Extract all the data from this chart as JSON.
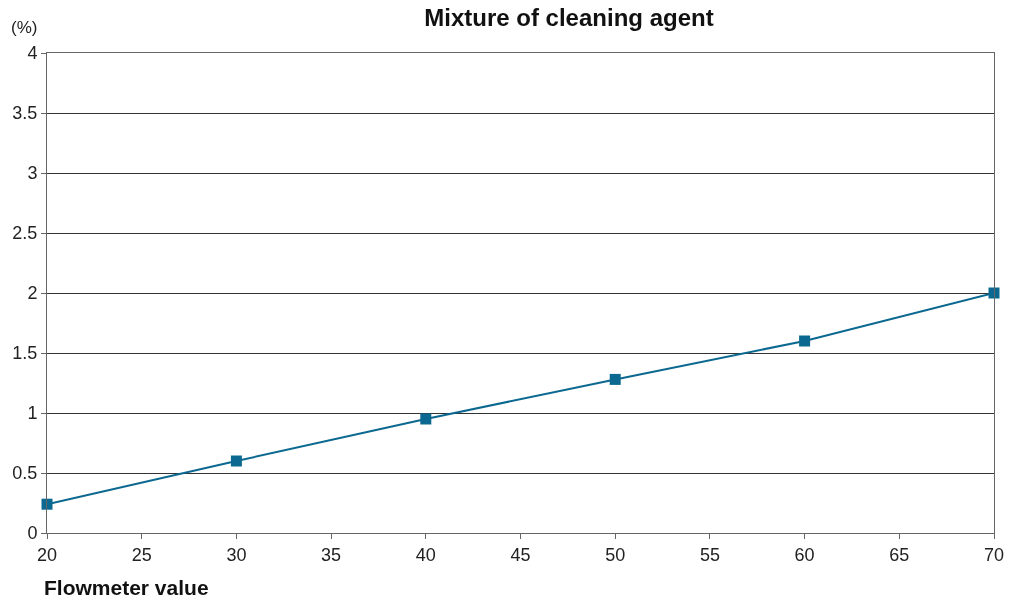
{
  "chart_data": {
    "type": "line",
    "title": "Mixture of cleaning agent",
    "xlabel": "Flowmeter value",
    "ylabel": "(%)",
    "x": [
      20,
      30,
      40,
      50,
      60,
      70
    ],
    "series": [
      {
        "color": "#0b6890",
        "values": [
          0.24,
          0.6,
          0.95,
          1.28,
          1.6,
          2.0
        ]
      }
    ],
    "xlim": [
      20,
      70
    ],
    "xticks": [
      20,
      25,
      30,
      35,
      40,
      45,
      50,
      55,
      60,
      65,
      70
    ],
    "ylim": [
      0,
      4
    ],
    "yticks": [
      0,
      0.5,
      1,
      1.5,
      2,
      2.5,
      3,
      3.5,
      4
    ],
    "grid": "y",
    "legend": false,
    "marker": "square",
    "line_style": "solid"
  }
}
